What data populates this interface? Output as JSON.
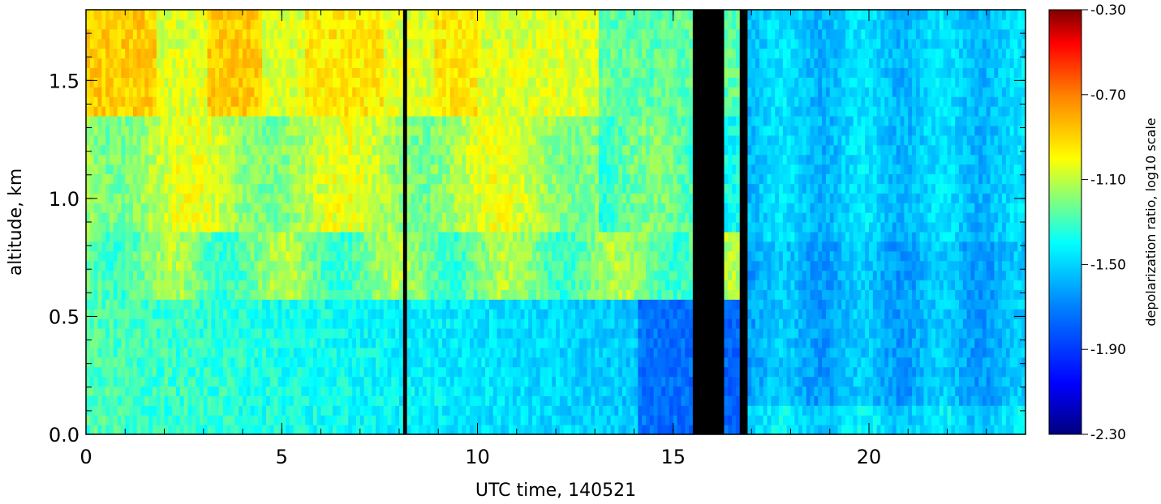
{
  "chart_data": {
    "type": "heatmap",
    "title": "",
    "xlabel": "UTC time, 140521",
    "ylabel": "altitude, km",
    "xlim": [
      0,
      24
    ],
    "ylim": [
      0,
      1.8
    ],
    "x_ticks": [
      "0",
      "5",
      "10",
      "15",
      "20"
    ],
    "y_ticks": [
      "0.0",
      "0.5",
      "1.0",
      "1.5"
    ],
    "colorbar": {
      "label": "depolarization ratio, log10 scale",
      "range": [
        -2.3,
        -0.3
      ],
      "ticks": [
        "-0.30",
        "-0.70",
        "-1.10",
        "-1.50",
        "-1.90",
        "-2.30"
      ],
      "colormap": "rainbow (dark blue → blue → cyan → green → yellow → orange → red → dark red)"
    },
    "no_data_columns_utc": [
      [
        8.1,
        8.2
      ],
      [
        15.5,
        16.3
      ],
      [
        16.7,
        16.9
      ]
    ],
    "field_summary": [
      {
        "x_range": [
          0,
          4.5
        ],
        "y_range": [
          1.3,
          1.8
        ],
        "value": -0.9
      },
      {
        "x_range": [
          0,
          15.5
        ],
        "y_range": [
          0.8,
          1.3
        ],
        "value": -1.15
      },
      {
        "x_range": [
          0,
          15.5
        ],
        "y_range": [
          0,
          0.6
        ],
        "value": -1.3
      },
      {
        "x_range": [
          17,
          24
        ],
        "y_range": [
          0,
          1.8
        ],
        "value": -1.6
      }
    ]
  }
}
